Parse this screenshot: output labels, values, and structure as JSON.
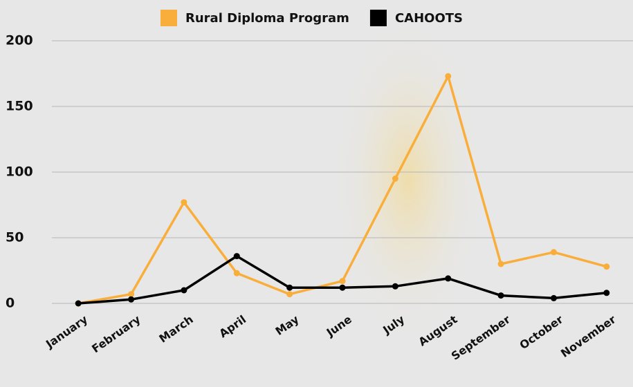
{
  "chart_data": {
    "type": "line",
    "categories": [
      "January",
      "February",
      "March",
      "April",
      "May",
      "June",
      "July",
      "August",
      "September",
      "October",
      "November"
    ],
    "series": [
      {
        "name": "Rural Diploma Program",
        "color": "#f9ae3c",
        "values": [
          0,
          7,
          77,
          23,
          7,
          17,
          95,
          173,
          30,
          39,
          28
        ]
      },
      {
        "name": "CAHOOTS",
        "color": "#000000",
        "values": [
          0,
          3,
          10,
          36,
          12,
          12,
          13,
          19,
          6,
          4,
          8
        ]
      }
    ],
    "ylim": [
      0,
      200
    ],
    "yticks": [
      0,
      50,
      100,
      150,
      200
    ],
    "grid": true,
    "legend": "top"
  }
}
